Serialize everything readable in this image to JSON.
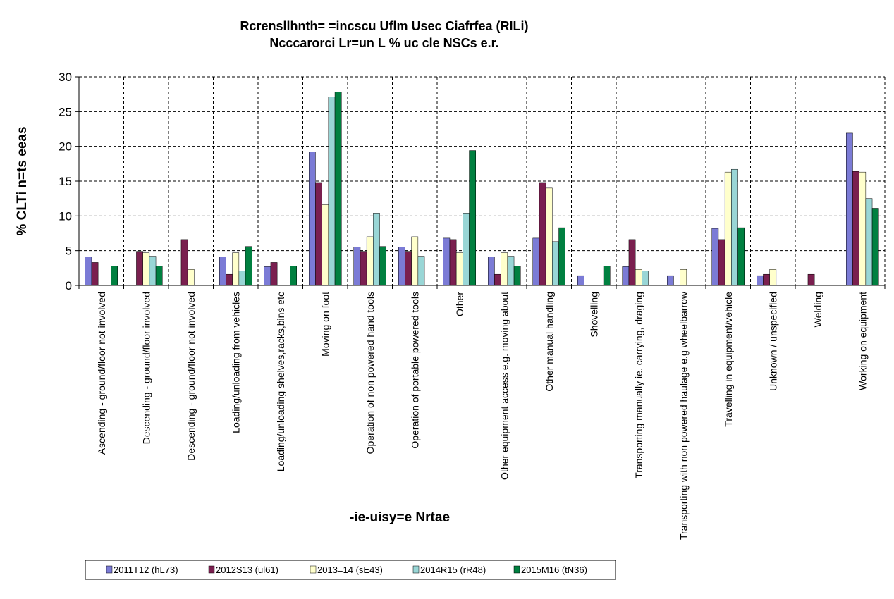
{
  "chart_data": {
    "type": "bar",
    "title": "Rcrensllhnth= =incscu Uflm Usec Ciafrfea (RILi)",
    "subtitle": "Ncccarorci Lr=un L % uc cle NSCs e.r.",
    "xlabel": "-ie-uisy=e Nrtae",
    "ylabel": "% CLTi n=ts eeas",
    "ylim": [
      0,
      30
    ],
    "yticks": [
      0,
      5,
      10,
      15,
      20,
      25,
      30
    ],
    "grid": true,
    "legend_position": "bottom-left",
    "categories": [
      "Ascending - ground/floor not involved",
      "Descending - ground/floor involved",
      "Descending - ground/floor not involved",
      "Loading/unloading from vehicles",
      "Loading/unloading shelves,racks,bins etc",
      "Moving on foot",
      "Operation of non powered hand tools",
      "Operation of portable powered tools",
      "Other",
      "Other equipment access e.g. moving about",
      "Other manual handling",
      "Shovelling",
      "Transporting manually ie. carrying, draging",
      "Transporting with non powered haulage e.g wheelbarrow",
      "Travelling in equipment/vehicle",
      "Unknown / unspecified",
      "Welding",
      "Working on equipment"
    ],
    "series": [
      {
        "name": "2011T12 (hL73)",
        "color": "#7b7bd6",
        "values": [
          4.1,
          0,
          0,
          4.1,
          2.7,
          19.2,
          5.5,
          5.5,
          6.8,
          4.1,
          6.8,
          1.4,
          2.7,
          1.4,
          8.2,
          1.4,
          0,
          21.9
        ]
      },
      {
        "name": "2012S13 (ul61)",
        "color": "#7a1f4f",
        "values": [
          3.3,
          4.9,
          6.6,
          1.6,
          3.3,
          14.8,
          4.9,
          4.9,
          6.6,
          1.6,
          14.8,
          0,
          6.6,
          0,
          6.6,
          1.6,
          1.6,
          16.4
        ]
      },
      {
        "name": "2013=14 (sE43)",
        "color": "#ffffcc",
        "values": [
          0,
          4.7,
          2.3,
          4.7,
          0,
          11.6,
          7.0,
          7.0,
          4.7,
          4.7,
          14.0,
          0,
          2.3,
          2.3,
          16.3,
          2.3,
          0,
          16.3
        ]
      },
      {
        "name": "2014R15 (rR48)",
        "color": "#99d6d6",
        "values": [
          0,
          4.2,
          0,
          2.1,
          0,
          27.1,
          10.4,
          4.2,
          10.4,
          4.2,
          6.3,
          0,
          2.1,
          0,
          16.7,
          0,
          0,
          12.5
        ]
      },
      {
        "name": "2015M16 (tN36)",
        "color": "#008040",
        "values": [
          2.8,
          2.8,
          0,
          5.6,
          2.8,
          27.8,
          5.6,
          0,
          19.4,
          2.8,
          8.3,
          2.8,
          0,
          0,
          8.3,
          0,
          0,
          11.1
        ]
      }
    ]
  }
}
